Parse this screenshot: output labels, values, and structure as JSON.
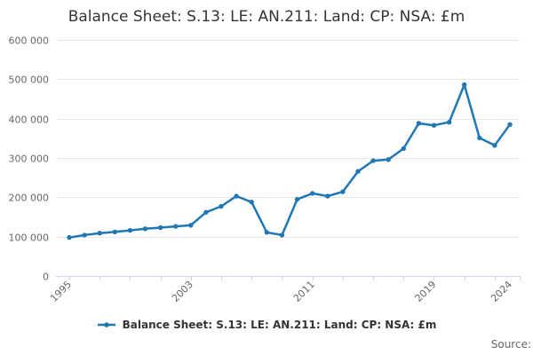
{
  "title": "Balance Sheet: S.13: LE: AN.211: Land: CP: NSA: £m",
  "legend": {
    "label": "Balance Sheet: S.13: LE: AN.211: Land: CP: NSA: £m"
  },
  "footer": {
    "source_label": "Source:"
  },
  "colors": {
    "series": "#1f77b4",
    "gridline": "#e6e6e6",
    "axis_line": "#ccd6eb",
    "tick_label": "#666666",
    "title_text": "#333333",
    "legend_text": "#333333",
    "source_text": "#666666",
    "background": "#ffffff"
  },
  "chart_data": {
    "type": "line",
    "title": "Balance Sheet: S.13: LE: AN.211: Land: CP: NSA: £m",
    "xlabel": "",
    "ylabel": "",
    "x": [
      1995,
      1996,
      1997,
      1998,
      1999,
      2000,
      2001,
      2002,
      2003,
      2004,
      2005,
      2006,
      2007,
      2008,
      2009,
      2010,
      2011,
      2012,
      2013,
      2014,
      2015,
      2016,
      2017,
      2018,
      2019,
      2020,
      2021,
      2022,
      2023,
      2024
    ],
    "series": [
      {
        "name": "Balance Sheet: S.13: LE: AN.211: Land: CP: NSA: £m",
        "values": [
          98000,
          104000,
          109000,
          112000,
          116000,
          120000,
          123000,
          126000,
          129000,
          162000,
          177000,
          203000,
          188000,
          111000,
          104000,
          195000,
          210000,
          203000,
          214000,
          266000,
          293000,
          296000,
          324000,
          388000,
          383000,
          391000,
          486000,
          351000,
          332000,
          385000
        ]
      }
    ],
    "ylim": [
      0,
      600000
    ],
    "y_tick_step": 100000,
    "y_tick_labels": [
      "0",
      "100 000",
      "200 000",
      "300 000",
      "400 000",
      "500 000",
      "600 000"
    ],
    "x_labeled_ticks": [
      1995,
      2003,
      2011,
      2019,
      2024
    ],
    "x_tick_step_years": 2,
    "grid": "horizontal",
    "legend_position": "bottom",
    "marker": "dot"
  }
}
